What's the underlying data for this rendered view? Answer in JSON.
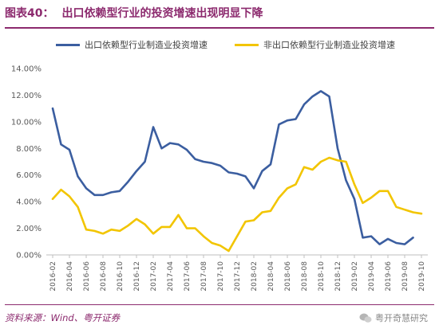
{
  "header": {
    "fig_label": "图表40：",
    "title": "出口依赖型行业的投资增速出现明显下降"
  },
  "footer": {
    "source": "资料来源：Wind、粤开证券",
    "watermark": "粤开奇慧研究"
  },
  "colors": {
    "accent": "#8c2a6e",
    "series1": "#3b5ea0",
    "series2": "#f2c500"
  },
  "chart_data": {
    "type": "line",
    "x": [
      "2016-02",
      "2016-03",
      "2016-04",
      "2016-05",
      "2016-06",
      "2016-07",
      "2016-08",
      "2016-09",
      "2016-10",
      "2016-11",
      "2016-12",
      "2017-01",
      "2017-02",
      "2017-03",
      "2017-04",
      "2017-05",
      "2017-06",
      "2017-07",
      "2017-08",
      "2017-09",
      "2017-10",
      "2017-11",
      "2017-12",
      "2018-01",
      "2018-02",
      "2018-03",
      "2018-04",
      "2018-05",
      "2018-06",
      "2018-07",
      "2018-08",
      "2018-09",
      "2018-10",
      "2018-11",
      "2018-12",
      "2019-01",
      "2019-02",
      "2019-03",
      "2019-04",
      "2019-05",
      "2019-06",
      "2019-07",
      "2019-08",
      "2019-09",
      "2019-10"
    ],
    "xticks": [
      "2016-02",
      "2016-04",
      "2016-06",
      "2016-08",
      "2016-10",
      "2016-12",
      "2017-02",
      "2017-04",
      "2017-06",
      "2017-08",
      "2017-10",
      "2017-12",
      "2018-02",
      "2018-04",
      "2018-06",
      "2018-08",
      "2018-10",
      "2018-12",
      "2019-02",
      "2019-04",
      "2019-06",
      "2019-08",
      "2019-10"
    ],
    "series": [
      {
        "name": "出口依赖型行业制造业投资增速",
        "values": [
          11.0,
          8.3,
          7.9,
          5.9,
          5.0,
          4.5,
          4.5,
          4.7,
          4.8,
          5.5,
          6.3,
          7.0,
          9.6,
          8.0,
          8.4,
          8.3,
          7.9,
          7.2,
          7.0,
          6.9,
          6.7,
          6.2,
          6.1,
          5.9,
          5.0,
          6.3,
          6.8,
          9.8,
          10.1,
          10.2,
          11.3,
          11.9,
          12.3,
          11.9,
          8.0,
          5.6,
          4.2,
          1.3,
          1.4,
          0.8,
          1.2,
          0.9,
          0.8,
          1.3,
          null
        ]
      },
      {
        "name": "非出口依赖型行业制造业投资增速",
        "values": [
          4.2,
          4.9,
          4.4,
          3.6,
          1.9,
          1.8,
          1.6,
          1.9,
          1.8,
          2.2,
          2.7,
          2.3,
          1.6,
          2.1,
          2.1,
          3.0,
          2.0,
          2.0,
          1.4,
          0.9,
          0.7,
          0.3,
          1.4,
          2.5,
          2.6,
          3.2,
          3.3,
          4.3,
          5.0,
          5.3,
          6.6,
          6.4,
          7.0,
          7.3,
          7.1,
          7.0,
          5.3,
          3.9,
          4.3,
          4.8,
          4.8,
          3.6,
          3.4,
          3.2,
          3.1
        ]
      }
    ],
    "yticks": [
      "0.00%",
      "2.00%",
      "4.00%",
      "6.00%",
      "8.00%",
      "10.00%",
      "12.00%",
      "14.00%"
    ],
    "ylim": [
      0,
      14
    ],
    "grid": false,
    "legend_position": "top"
  }
}
